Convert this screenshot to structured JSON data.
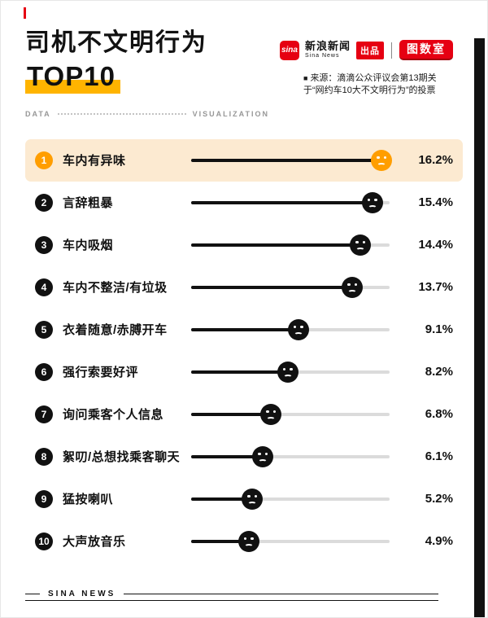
{
  "header": {
    "title_line1": "司机不文明行为",
    "title_line2": "TOP10",
    "brand": {
      "sina_logo": "sina",
      "brand_name": "新浪新闻",
      "brand_sub": "Sina News",
      "produced_label": "出品",
      "tushu_logo": "图数室"
    },
    "source_bullet": "■",
    "source_text": "来源：滴滴公众评议会第13期关于“网约车10大不文明行为”的投票"
  },
  "subheader": {
    "left": "DATA",
    "right": "VISUALIZATION"
  },
  "footer": {
    "brand": "SINA NEWS"
  },
  "colors": {
    "accent": "#FF9E00",
    "title_highlight": "#FFB400",
    "highlight_row_bg": "#FCEAD1",
    "brand_red": "#E60012",
    "ink": "#111111",
    "track": "#DBDBDB"
  },
  "chart_data": {
    "type": "bar",
    "title": "司机不文明行为 TOP10",
    "unit": "%",
    "max": 16.2,
    "legend": "none",
    "orientation": "horizontal",
    "categories": [
      "车内有异味",
      "言辞粗暴",
      "车内吸烟",
      "车内不整洁/有垃圾",
      "衣着随意/赤膊开车",
      "强行索要好评",
      "询问乘客个人信息",
      "絮叨/总想找乘客聊天",
      "猛按喇叭",
      "大声放音乐"
    ],
    "values": [
      16.2,
      15.4,
      14.4,
      13.7,
      9.1,
      8.2,
      6.8,
      6.1,
      5.2,
      4.9
    ],
    "items": [
      {
        "rank": "1",
        "label": "车内有异味",
        "value": 16.2,
        "percent": "16.2%",
        "highlight": true
      },
      {
        "rank": "2",
        "label": "言辞粗暴",
        "value": 15.4,
        "percent": "15.4%",
        "highlight": false
      },
      {
        "rank": "3",
        "label": "车内吸烟",
        "value": 14.4,
        "percent": "14.4%",
        "highlight": false
      },
      {
        "rank": "4",
        "label": "车内不整洁/有垃圾",
        "value": 13.7,
        "percent": "13.7%",
        "highlight": false
      },
      {
        "rank": "5",
        "label": "衣着随意/赤膊开车",
        "value": 9.1,
        "percent": "9.1%",
        "highlight": false
      },
      {
        "rank": "6",
        "label": "强行索要好评",
        "value": 8.2,
        "percent": "8.2%",
        "highlight": false
      },
      {
        "rank": "7",
        "label": "询问乘客个人信息",
        "value": 6.8,
        "percent": "6.8%",
        "highlight": false
      },
      {
        "rank": "8",
        "label": "絮叨/总想找乘客聊天",
        "value": 6.1,
        "percent": "6.1%",
        "highlight": false
      },
      {
        "rank": "9",
        "label": "猛按喇叭",
        "value": 5.2,
        "percent": "5.2%",
        "highlight": false
      },
      {
        "rank": "10",
        "label": "大声放音乐",
        "value": 4.9,
        "percent": "4.9%",
        "highlight": false
      }
    ]
  }
}
